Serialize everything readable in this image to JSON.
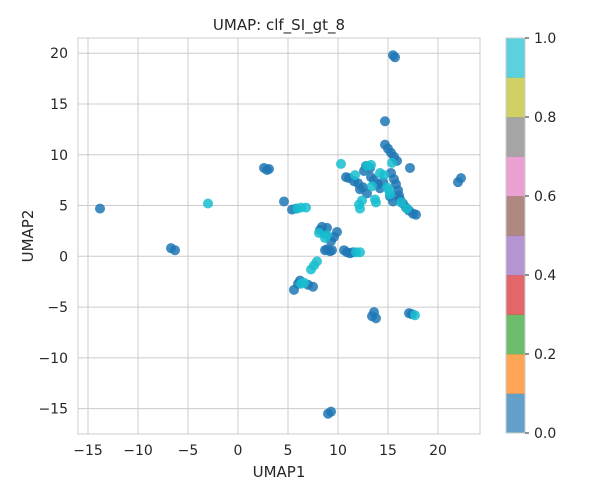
{
  "chart_data": {
    "type": "scatter",
    "title": "UMAP: clf_SI_gt_8",
    "xlabel": "UMAP1",
    "ylabel": "UMAP2",
    "xlim": [
      -16,
      24.2
    ],
    "ylim": [
      -17.5,
      21.5
    ],
    "xticks": [
      -15,
      -10,
      -5,
      0,
      5,
      10,
      15,
      20
    ],
    "yticks": [
      -15,
      -10,
      -5,
      0,
      5,
      10,
      15,
      20
    ],
    "grid": true,
    "colorbar": {
      "range": [
        0.0,
        1.0
      ],
      "ticks": [
        "0.0",
        "0.2",
        "0.4",
        "0.6",
        "0.8",
        "1.0"
      ],
      "colors": [
        "#1f77b4",
        "#ff7f0e",
        "#2ca02c",
        "#d62728",
        "#9467bd",
        "#8c564b",
        "#e377c2",
        "#7f7f7f",
        "#bcbd22",
        "#17becf"
      ]
    },
    "series": [
      {
        "color_value": 0.0,
        "color": "#1f77b4",
        "points": [
          [
            -13.8,
            4.7
          ],
          [
            -6.7,
            0.8
          ],
          [
            -6.3,
            0.6
          ],
          [
            2.6,
            8.7
          ],
          [
            2.9,
            8.5
          ],
          [
            3.1,
            8.6
          ],
          [
            4.6,
            5.4
          ],
          [
            5.4,
            4.6
          ],
          [
            5.8,
            4.7
          ],
          [
            5.6,
            -3.3
          ],
          [
            6.0,
            -2.7
          ],
          [
            6.2,
            -2.4
          ],
          [
            7.0,
            -2.8
          ],
          [
            7.5,
            -3.0
          ],
          [
            8.2,
            2.6
          ],
          [
            8.4,
            2.9
          ],
          [
            8.7,
            2.2
          ],
          [
            8.9,
            2.8
          ],
          [
            9.3,
            1.5
          ],
          [
            9.6,
            1.9
          ],
          [
            9.9,
            2.4
          ],
          [
            8.7,
            0.6
          ],
          [
            8.9,
            0.7
          ],
          [
            9.2,
            0.5
          ],
          [
            9.4,
            0.6
          ],
          [
            9.0,
            -15.5
          ],
          [
            9.3,
            -15.3
          ],
          [
            10.6,
            0.6
          ],
          [
            10.9,
            0.4
          ],
          [
            11.2,
            0.3
          ],
          [
            11.5,
            0.4
          ],
          [
            10.8,
            7.8
          ],
          [
            11.1,
            7.7
          ],
          [
            11.6,
            7.4
          ],
          [
            12.0,
            7.2
          ],
          [
            12.2,
            6.6
          ],
          [
            12.5,
            6.8
          ],
          [
            12.9,
            6.2
          ],
          [
            12.6,
            8.4
          ],
          [
            12.8,
            8.9
          ],
          [
            13.2,
            8.7
          ],
          [
            13.3,
            7.8
          ],
          [
            13.6,
            7.5
          ],
          [
            14.0,
            7.1
          ],
          [
            14.2,
            6.7
          ],
          [
            14.5,
            7.3
          ],
          [
            13.4,
            -5.9
          ],
          [
            13.6,
            -5.5
          ],
          [
            13.8,
            -6.1
          ],
          [
            14.7,
            13.3
          ],
          [
            14.7,
            11.0
          ],
          [
            15.0,
            10.6
          ],
          [
            15.3,
            10.2
          ],
          [
            15.6,
            9.8
          ],
          [
            15.9,
            9.4
          ],
          [
            15.3,
            8.2
          ],
          [
            15.6,
            7.6
          ],
          [
            15.8,
            7.1
          ],
          [
            16.0,
            6.5
          ],
          [
            16.1,
            6.0
          ],
          [
            15.5,
            5.4
          ],
          [
            15.2,
            5.9
          ],
          [
            16.2,
            5.6
          ],
          [
            16.5,
            5.2
          ],
          [
            16.8,
            4.8
          ],
          [
            17.1,
            4.5
          ],
          [
            17.5,
            4.2
          ],
          [
            17.8,
            4.1
          ],
          [
            15.5,
            19.8
          ],
          [
            15.7,
            19.6
          ],
          [
            17.2,
            8.7
          ],
          [
            17.1,
            -5.6
          ],
          [
            17.4,
            -5.7
          ],
          [
            22.0,
            7.3
          ],
          [
            22.3,
            7.7
          ]
        ]
      },
      {
        "color_value": 1.0,
        "color": "#17becf",
        "points": [
          [
            -3.0,
            5.2
          ],
          [
            5.9,
            4.7
          ],
          [
            6.3,
            4.8
          ],
          [
            6.8,
            4.8
          ],
          [
            6.3,
            -2.7
          ],
          [
            6.6,
            -2.6
          ],
          [
            7.3,
            -1.3
          ],
          [
            7.6,
            -0.9
          ],
          [
            7.9,
            -0.5
          ],
          [
            8.1,
            2.3
          ],
          [
            8.7,
            1.8
          ],
          [
            8.9,
            2.1
          ],
          [
            10.3,
            9.1
          ],
          [
            11.7,
            8.0
          ],
          [
            12.1,
            5.1
          ],
          [
            12.2,
            4.7
          ],
          [
            12.4,
            5.5
          ],
          [
            11.8,
            0.4
          ],
          [
            12.2,
            0.4
          ],
          [
            12.9,
            8.9
          ],
          [
            13.3,
            9.0
          ],
          [
            13.4,
            6.9
          ],
          [
            13.7,
            5.6
          ],
          [
            13.8,
            5.3
          ],
          [
            14.2,
            8.2
          ],
          [
            14.6,
            8.0
          ],
          [
            14.9,
            6.8
          ],
          [
            15.1,
            6.5
          ],
          [
            15.2,
            6.1
          ],
          [
            15.4,
            9.2
          ],
          [
            16.3,
            5.3
          ],
          [
            16.9,
            4.7
          ],
          [
            17.7,
            -5.8
          ]
        ]
      }
    ]
  }
}
